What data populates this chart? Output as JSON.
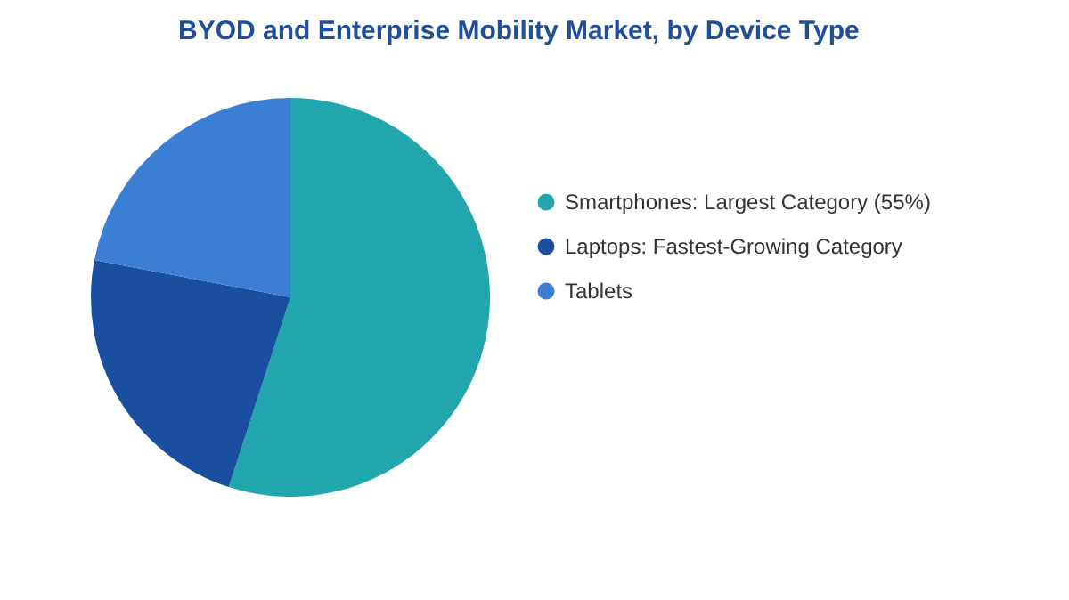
{
  "chart_data": {
    "type": "pie",
    "title": "BYOD and Enterprise Mobility Market, by Device Type",
    "categories": [
      "Smartphones:  Largest Category (55%)",
      "Laptops:  Fastest-Growing Category",
      "Tablets"
    ],
    "values": [
      55,
      23,
      22
    ],
    "colors": [
      "#21a6ad",
      "#1a4fa0",
      "#3a7fd4"
    ],
    "legend": "right"
  }
}
